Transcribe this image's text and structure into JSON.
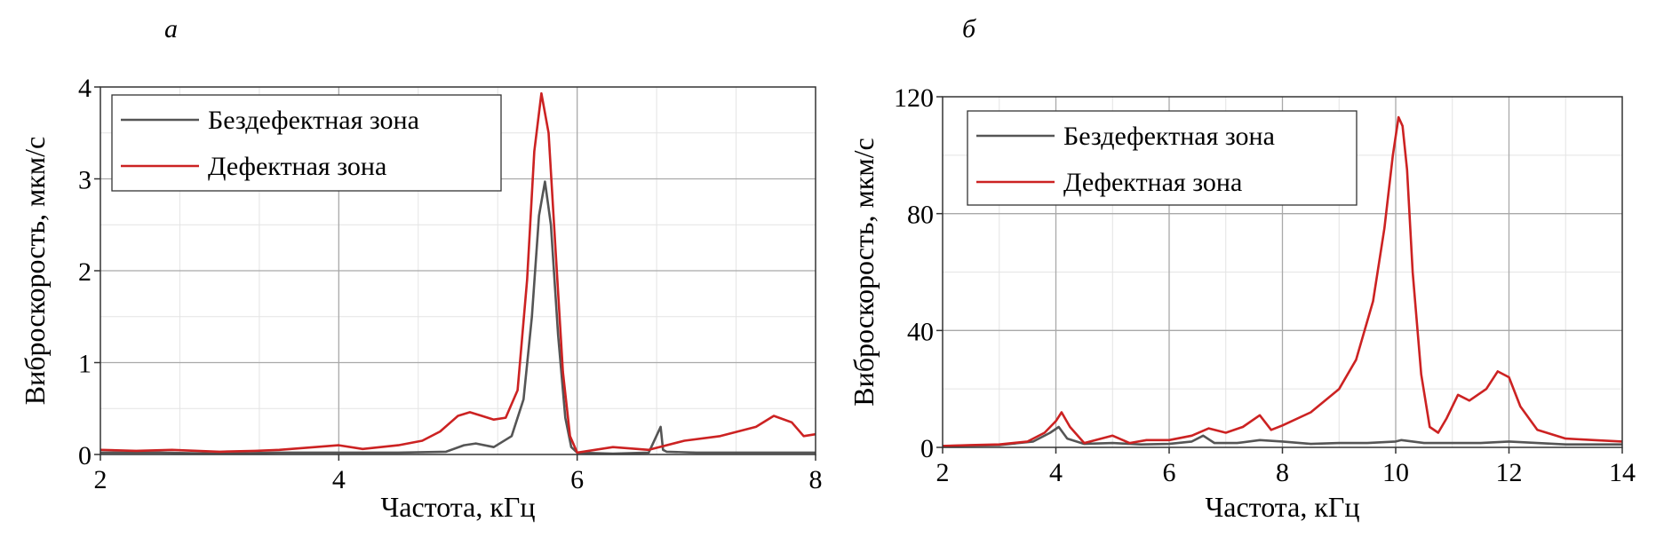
{
  "panel_labels": [
    "а",
    "б"
  ],
  "chart_data": [
    {
      "panel": "а",
      "type": "line",
      "xlabel": "Частота, кГц",
      "ylabel": "Виброскорость, мкм/с",
      "xlim": [
        2,
        8
      ],
      "ylim": [
        0,
        4
      ],
      "xticks": [
        "2",
        "4",
        "6",
        "8"
      ],
      "yticks": [
        "0",
        "1",
        "2",
        "3",
        "4"
      ],
      "grid": true,
      "legend_position": "top-left",
      "series": [
        {
          "name": "Бездефектная зона",
          "color": "#555555",
          "x": [
            2.0,
            2.5,
            3.0,
            3.5,
            4.0,
            4.5,
            4.9,
            5.05,
            5.15,
            5.3,
            5.45,
            5.55,
            5.62,
            5.68,
            5.73,
            5.78,
            5.84,
            5.9,
            5.95,
            6.0,
            6.3,
            6.6,
            6.7,
            6.72,
            6.75,
            7.0,
            7.5,
            8.0
          ],
          "y": [
            0.02,
            0.02,
            0.01,
            0.02,
            0.02,
            0.02,
            0.03,
            0.1,
            0.12,
            0.08,
            0.2,
            0.6,
            1.5,
            2.6,
            2.97,
            2.5,
            1.3,
            0.4,
            0.08,
            0.02,
            0.01,
            0.02,
            0.3,
            0.05,
            0.03,
            0.02,
            0.02,
            0.02
          ]
        },
        {
          "name": "Дефектная зона",
          "color": "#cc2222",
          "x": [
            2.0,
            2.3,
            2.6,
            3.0,
            3.3,
            3.5,
            3.8,
            4.0,
            4.2,
            4.5,
            4.7,
            4.85,
            5.0,
            5.1,
            5.2,
            5.3,
            5.4,
            5.5,
            5.58,
            5.64,
            5.7,
            5.76,
            5.82,
            5.88,
            5.94,
            6.0,
            6.3,
            6.6,
            6.9,
            7.2,
            7.5,
            7.65,
            7.8,
            7.9,
            8.0
          ],
          "y": [
            0.05,
            0.04,
            0.05,
            0.03,
            0.04,
            0.05,
            0.08,
            0.1,
            0.06,
            0.1,
            0.15,
            0.25,
            0.42,
            0.46,
            0.42,
            0.38,
            0.4,
            0.7,
            1.9,
            3.3,
            3.93,
            3.5,
            2.2,
            0.9,
            0.2,
            0.02,
            0.08,
            0.05,
            0.15,
            0.2,
            0.3,
            0.42,
            0.35,
            0.2,
            0.22
          ]
        }
      ]
    },
    {
      "panel": "б",
      "type": "line",
      "xlabel": "Частота, кГц",
      "ylabel": "Виброскорость, мкм/с",
      "xlim": [
        2,
        14
      ],
      "ylim": [
        0,
        120
      ],
      "xticks": [
        "2",
        "4",
        "6",
        "8",
        "10",
        "12",
        "14"
      ],
      "yticks": [
        "0",
        "40",
        "80",
        "120"
      ],
      "grid": true,
      "legend_position": "top-left",
      "series": [
        {
          "name": "Бездефектная зона",
          "color": "#555555",
          "x": [
            2.0,
            3.0,
            3.6,
            3.9,
            4.05,
            4.2,
            4.5,
            5.0,
            5.5,
            6.0,
            6.4,
            6.6,
            6.8,
            7.2,
            7.6,
            8.0,
            8.5,
            9.0,
            9.5,
            10.0,
            10.1,
            10.5,
            11.0,
            11.5,
            12.0,
            12.5,
            13.0,
            14.0
          ],
          "y": [
            0.5,
            0.8,
            2.0,
            5.0,
            7.0,
            3.0,
            1.2,
            1.5,
            1.0,
            1.2,
            2.0,
            4.0,
            1.5,
            1.5,
            2.5,
            2.0,
            1.2,
            1.5,
            1.5,
            2.0,
            2.5,
            1.5,
            1.5,
            1.5,
            2.0,
            1.5,
            1.0,
            1.0
          ]
        },
        {
          "name": "Дефектная зона",
          "color": "#cc2222",
          "x": [
            2.0,
            2.5,
            3.0,
            3.5,
            3.8,
            4.0,
            4.1,
            4.25,
            4.5,
            4.8,
            5.0,
            5.3,
            5.6,
            6.0,
            6.4,
            6.7,
            7.0,
            7.3,
            7.6,
            7.8,
            8.0,
            8.5,
            9.0,
            9.3,
            9.6,
            9.8,
            9.95,
            10.05,
            10.12,
            10.2,
            10.3,
            10.45,
            10.6,
            10.75,
            10.9,
            11.1,
            11.3,
            11.6,
            11.8,
            12.0,
            12.2,
            12.5,
            13.0,
            13.5,
            14.0
          ],
          "y": [
            0.5,
            0.8,
            1.0,
            2.0,
            5.0,
            9.0,
            12.0,
            7.0,
            1.5,
            3.0,
            4.0,
            1.5,
            2.5,
            2.5,
            4.0,
            6.5,
            5.0,
            7.0,
            11.0,
            6.0,
            7.5,
            12.0,
            20.0,
            30.0,
            50.0,
            75.0,
            100.0,
            113.0,
            110.0,
            95.0,
            60.0,
            25.0,
            7.0,
            5.0,
            10.0,
            18.0,
            16.0,
            20.0,
            26.0,
            24.0,
            14.0,
            6.0,
            3.0,
            2.5,
            2.0
          ]
        }
      ]
    }
  ]
}
